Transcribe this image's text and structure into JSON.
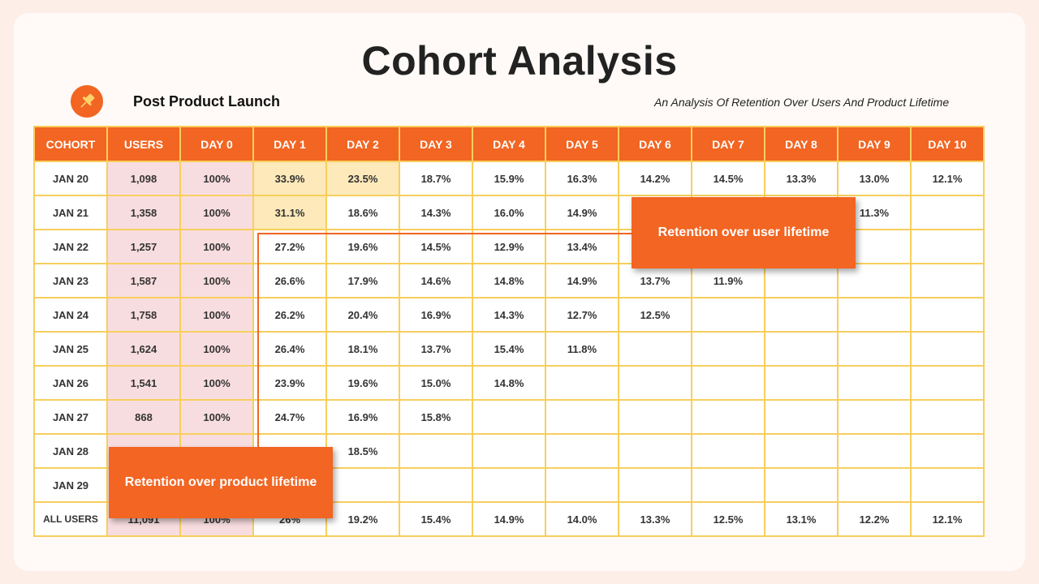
{
  "title": "Cohort Analysis",
  "subtitle_left": "Post Product Launch",
  "subtitle_right": "An Analysis Of Retention Over Users And Product Lifetime",
  "icons": {
    "badge": "pushpin-icon"
  },
  "colors": {
    "accent": "#f26522",
    "grid": "#f7cf5d",
    "users_bg": "#f8dde0",
    "highlight": "#fde9b9"
  },
  "callouts": {
    "user": "Retention over user lifetime",
    "product": "Retention over product lifetime"
  },
  "chart_data": {
    "type": "table",
    "columns": [
      "COHORT",
      "USERS",
      "DAY 0",
      "DAY 1",
      "DAY 2",
      "DAY 3",
      "DAY 4",
      "DAY 5",
      "DAY 6",
      "DAY 7",
      "DAY 8",
      "DAY 9",
      "DAY 10"
    ],
    "rows": [
      [
        "JAN 20",
        "1,098",
        "100%",
        "33.9%",
        "23.5%",
        "18.7%",
        "15.9%",
        "16.3%",
        "14.2%",
        "14.5%",
        "13.3%",
        "13.0%",
        "12.1%"
      ],
      [
        "JAN 21",
        "1,358",
        "100%",
        "31.1%",
        "18.6%",
        "14.3%",
        "16.0%",
        "14.9%",
        "",
        "",
        "",
        "11.3%",
        ""
      ],
      [
        "JAN 22",
        "1,257",
        "100%",
        "27.2%",
        "19.6%",
        "14.5%",
        "12.9%",
        "13.4%",
        "",
        "",
        "",
        "",
        ""
      ],
      [
        "JAN 23",
        "1,587",
        "100%",
        "26.6%",
        "17.9%",
        "14.6%",
        "14.8%",
        "14.9%",
        "13.7%",
        "11.9%",
        "",
        "",
        ""
      ],
      [
        "JAN 24",
        "1,758",
        "100%",
        "26.2%",
        "20.4%",
        "16.9%",
        "14.3%",
        "12.7%",
        "12.5%",
        "",
        "",
        "",
        ""
      ],
      [
        "JAN 25",
        "1,624",
        "100%",
        "26.4%",
        "18.1%",
        "13.7%",
        "15.4%",
        "11.8%",
        "",
        "",
        "",
        "",
        ""
      ],
      [
        "JAN 26",
        "1,541",
        "100%",
        "23.9%",
        "19.6%",
        "15.0%",
        "14.8%",
        "",
        "",
        "",
        "",
        "",
        ""
      ],
      [
        "JAN 27",
        "868",
        "100%",
        "24.7%",
        "16.9%",
        "15.8%",
        "",
        "",
        "",
        "",
        "",
        "",
        ""
      ],
      [
        "JAN 28",
        "",
        "",
        "",
        "18.5%",
        "",
        "",
        "",
        "",
        "",
        "",
        "",
        ""
      ],
      [
        "JAN 29",
        "",
        "",
        "",
        "",
        "",
        "",
        "",
        "",
        "",
        "",
        "",
        ""
      ],
      [
        "ALL USERS",
        "11,091",
        "100%",
        "26%",
        "19.2%",
        "15.4%",
        "14.9%",
        "14.0%",
        "13.3%",
        "12.5%",
        "13.1%",
        "12.2%",
        "12.1%"
      ]
    ]
  }
}
